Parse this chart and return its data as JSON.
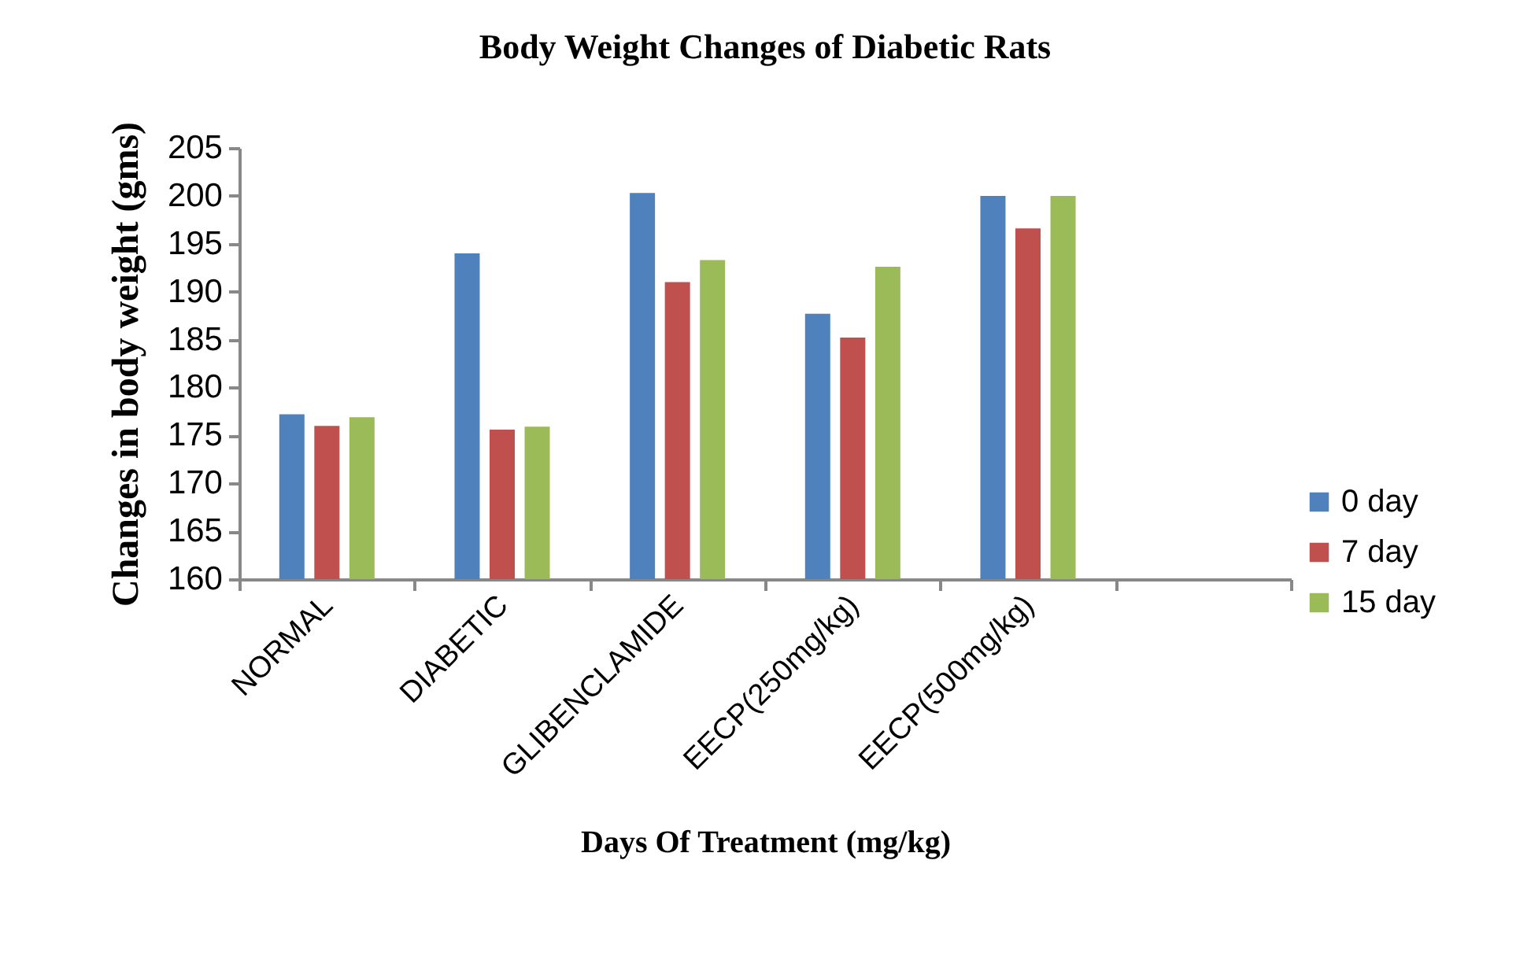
{
  "chart_data": {
    "type": "bar",
    "title": "Body Weight Changes of Diabetic Rats",
    "xlabel": "Days Of Treatment (mg/kg)",
    "ylabel": "Changes in body weight (gms)",
    "categories": [
      "NORMAL",
      "DIABETIC",
      "GLIBENCLAMIDE",
      "EECP(250mg/kg)",
      "EECP(500mg/kg)",
      null
    ],
    "series": [
      {
        "name": "0 day",
        "color": "#4f81bd",
        "values": [
          177.2,
          194.0,
          200.3,
          187.7,
          200.0,
          null
        ]
      },
      {
        "name": "7 day",
        "color": "#c0504d",
        "values": [
          176.0,
          175.6,
          191.0,
          185.2,
          196.6,
          null
        ]
      },
      {
        "name": "15 day",
        "color": "#9bbb59",
        "values": [
          176.9,
          175.9,
          193.3,
          192.6,
          200.0,
          null
        ]
      }
    ],
    "ylim": [
      160,
      205
    ],
    "yticks": [
      160,
      165,
      170,
      175,
      180,
      185,
      190,
      195,
      200,
      205
    ],
    "grid": false,
    "legend": "right"
  }
}
